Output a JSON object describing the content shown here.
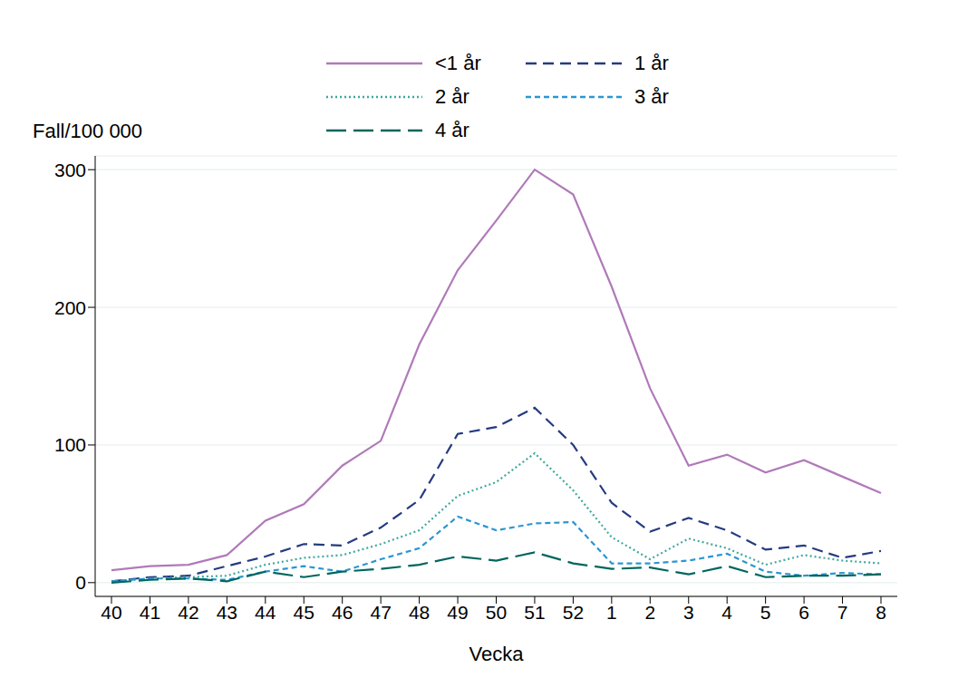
{
  "chart_data": {
    "type": "line",
    "x_label": "Vecka",
    "y_label": "Fall/100 000",
    "categories": [
      "40",
      "41",
      "42",
      "43",
      "44",
      "45",
      "46",
      "47",
      "48",
      "49",
      "50",
      "51",
      "52",
      "1",
      "2",
      "3",
      "4",
      "5",
      "6",
      "7",
      "8"
    ],
    "series": [
      {
        "name": "<1 år",
        "color": "#b07ab9",
        "line_style": "solid",
        "values": [
          9,
          12,
          13,
          20,
          45,
          57,
          85,
          103,
          173,
          227,
          263,
          300,
          282,
          215,
          141,
          85,
          93,
          80,
          89,
          77,
          65
        ]
      },
      {
        "name": "1 år",
        "color": "#253b80",
        "line_style": "dashed",
        "values": [
          1,
          4,
          5,
          12,
          19,
          28,
          27,
          40,
          60,
          108,
          113,
          127,
          100,
          58,
          37,
          47,
          38,
          24,
          27,
          18,
          23
        ]
      },
      {
        "name": "2 år",
        "color": "#3fa89f",
        "line_style": "dotted",
        "values": [
          1,
          3,
          4,
          5,
          13,
          18,
          20,
          28,
          38,
          63,
          73,
          94,
          67,
          33,
          17,
          32,
          25,
          13,
          20,
          16,
          14
        ]
      },
      {
        "name": "3 år",
        "color": "#2b96d2",
        "line_style": "short_dash",
        "values": [
          1,
          3,
          3,
          2,
          8,
          12,
          8,
          17,
          25,
          48,
          38,
          43,
          44,
          14,
          14,
          16,
          21,
          8,
          5,
          7,
          6
        ]
      },
      {
        "name": "4 år",
        "color": "#00665e",
        "line_style": "long_dash",
        "values": [
          0,
          2,
          3,
          1,
          8,
          4,
          8,
          10,
          13,
          19,
          16,
          22,
          14,
          10,
          11,
          6,
          12,
          4,
          5,
          5,
          6
        ]
      }
    ],
    "ylim": [
      -10,
      310
    ],
    "yticks": [
      0,
      100,
      200,
      300
    ],
    "grid": true,
    "legend": "top"
  }
}
